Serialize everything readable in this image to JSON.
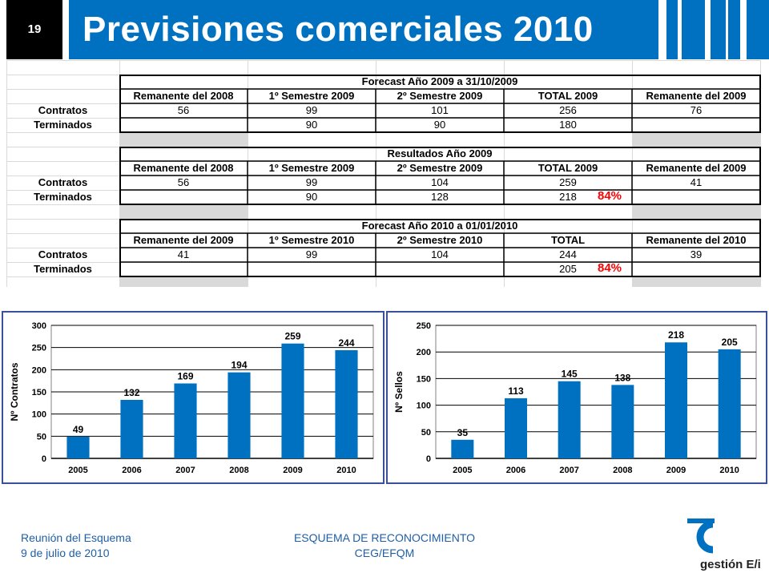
{
  "header": {
    "slide_number": "19",
    "title": "Previsiones comerciales 2010"
  },
  "sheet": {
    "tables": [
      {
        "title": "Forecast Año 2009 a 31/10/2009",
        "columns": [
          "Remanente del 2008",
          "1º Semestre 2009",
          "2º Semestre 2009",
          "TOTAL 2009",
          "Remanente del 2009"
        ],
        "rows": [
          {
            "label": "Contratos",
            "cells": [
              "56",
              "99",
              "101",
              "256",
              "76"
            ]
          },
          {
            "label": "Terminados",
            "cells": [
              "",
              "90",
              "90",
              "180",
              ""
            ]
          }
        ],
        "percent": ""
      },
      {
        "title": "Resultados Año 2009",
        "columns": [
          "Remanente del 2008",
          "1º Semestre 2009",
          "2º Semestre 2009",
          "TOTAL 2009",
          "Remanente del 2009"
        ],
        "rows": [
          {
            "label": "Contratos",
            "cells": [
              "56",
              "99",
              "104",
              "259",
              "41"
            ]
          },
          {
            "label": "Terminados",
            "cells": [
              "",
              "90",
              "128",
              "218",
              ""
            ]
          }
        ],
        "percent": "84%"
      },
      {
        "title": "Forecast Año 2010 a 01/01/2010",
        "columns": [
          "Remanente del 2009",
          "1º Semestre 2010",
          "2º Semestre 2010",
          "TOTAL",
          "Remanente del 2010"
        ],
        "rows": [
          {
            "label": "Contratos",
            "cells": [
              "41",
              "99",
              "104",
              "244",
              "39"
            ]
          },
          {
            "label": "Terminados",
            "cells": [
              "",
              "",
              "",
              "205",
              ""
            ]
          }
        ],
        "percent": "84%"
      }
    ]
  },
  "chart_data": [
    {
      "type": "bar",
      "title": "",
      "categories": [
        "2005",
        "2006",
        "2007",
        "2008",
        "2009",
        "2010"
      ],
      "values": [
        49,
        132,
        169,
        194,
        259,
        244
      ],
      "ylabel": "Nº Contratos",
      "xlabel": "",
      "ylim": [
        0,
        300
      ],
      "yticks": [
        0,
        50,
        100,
        150,
        200,
        250,
        300
      ],
      "grid": true,
      "bar_color": "#0070c0"
    },
    {
      "type": "bar",
      "title": "",
      "categories": [
        "2005",
        "2006",
        "2007",
        "2008",
        "2009",
        "2010"
      ],
      "values": [
        35,
        113,
        145,
        138,
        218,
        205
      ],
      "ylabel": "Nº Sellos",
      "xlabel": "",
      "ylim": [
        0,
        250
      ],
      "yticks": [
        0,
        50,
        100,
        150,
        200,
        250
      ],
      "grid": true,
      "bar_color": "#0070c0"
    }
  ],
  "footer": {
    "left_line1": "Reunión del Esquema",
    "left_line2": "9 de julio de 2010",
    "center_line1": "ESQUEMA DE RECONOCIMIENTO",
    "center_line2": "CEG/EFQM",
    "logo_text": "gestión E/i"
  },
  "colors": {
    "brand_blue": "#0070c0",
    "footer_text": "#1f5fa6",
    "percent_red": "#ff0000"
  }
}
